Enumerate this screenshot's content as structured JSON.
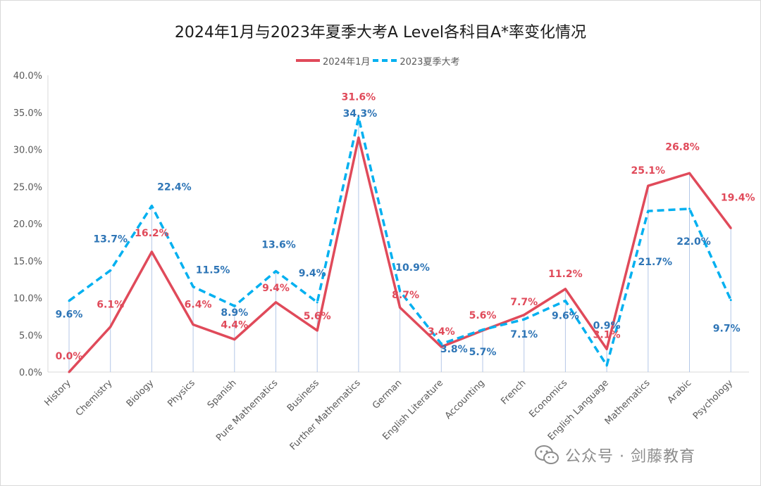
{
  "chart_data": {
    "type": "line",
    "title": "2024年1月与2023年夏季大考A Level各科目A*率变化情况",
    "categories": [
      "History",
      "Chemistry",
      "Biology",
      "Physics",
      "Spanish",
      "Pure Mathematics",
      "Business",
      "Further Mathematics",
      "German",
      "English Literature",
      "Accounting",
      "French",
      "Economics",
      "English Language",
      "Mathematics",
      "Arabic",
      "Psychology"
    ],
    "series": [
      {
        "name": "2024年1月",
        "color": "#e04a5a",
        "style": "solid",
        "values": [
          0.0,
          6.1,
          16.2,
          6.4,
          4.4,
          9.4,
          5.6,
          31.6,
          8.7,
          3.4,
          5.6,
          7.7,
          11.2,
          3.1,
          25.1,
          26.8,
          19.4
        ],
        "labels": [
          "0.0%",
          "6.1%",
          "16.2%",
          "6.4%",
          "4.4%",
          "9.4%",
          "5.6%",
          "31.6%",
          "8.7%",
          "3.4%",
          "5.6%",
          "7.7%",
          "11.2%",
          "3.1%",
          "25.1%",
          "26.8%",
          "19.4%"
        ]
      },
      {
        "name": "2023夏季大考",
        "color": "#00b0f0",
        "label_color": "#2e75b6",
        "style": "dashed",
        "values": [
          9.6,
          13.7,
          22.4,
          11.5,
          8.9,
          13.6,
          9.4,
          34.3,
          10.9,
          3.8,
          5.7,
          7.1,
          9.6,
          0.9,
          21.7,
          22.0,
          9.7
        ],
        "labels": [
          "9.6%",
          "13.7%",
          "22.4%",
          "11.5%",
          "8.9%",
          "13.6%",
          "9.4%",
          "34.3%",
          "10.9%",
          "3.8%",
          "5.7%",
          "7.1%",
          "9.6%",
          "0.9%",
          "21.7%",
          "22.0%",
          "9.7%"
        ]
      }
    ],
    "yticks": [
      "0.0%",
      "5.0%",
      "10.0%",
      "15.0%",
      "20.0%",
      "25.0%",
      "30.0%",
      "35.0%",
      "40.0%"
    ],
    "ylim": [
      0,
      40
    ],
    "legend": "top",
    "grid": false
  },
  "watermark": {
    "text": "公众号 · 剑藤教育",
    "icon": "wechat-icon"
  }
}
